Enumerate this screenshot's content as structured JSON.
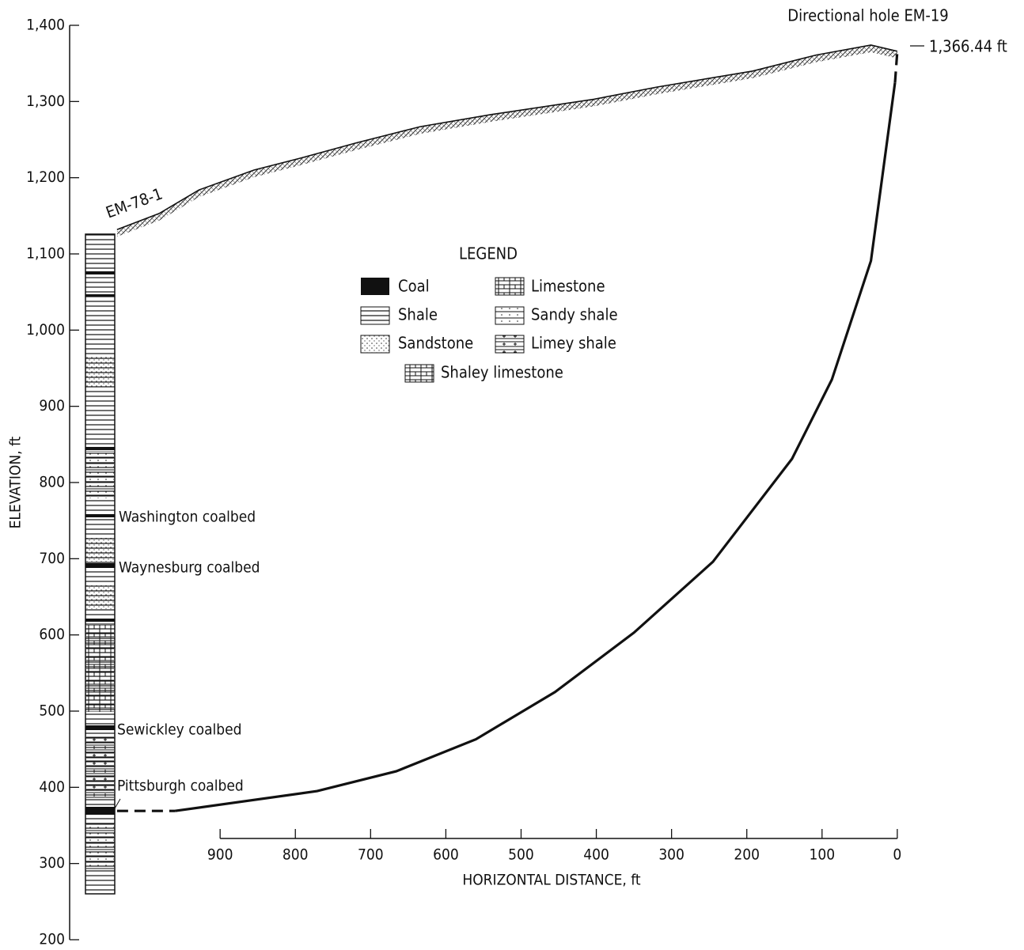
{
  "chart_data": {
    "type": "line",
    "ylabel": "ELEVATION, ft",
    "xlabel": "HORIZONTAL DISTANCE, ft",
    "xlim": [
      1100,
      -160
    ],
    "ylim": [
      200,
      1400
    ],
    "xticks": [
      900,
      800,
      700,
      600,
      500,
      400,
      300,
      200,
      100,
      0
    ],
    "yticks": [
      200,
      300,
      400,
      500,
      600,
      700,
      800,
      900,
      {
        "value": 1000,
        "label": "1,000"
      },
      {
        "value": 1100,
        "label": "1,100"
      },
      {
        "value": 1200,
        "label": "1,200"
      },
      {
        "value": 1300,
        "label": "1,300"
      },
      {
        "value": 1400,
        "label": "1,400"
      }
    ],
    "series": [
      {
        "color": "#111",
        "style": "surface",
        "x": [
          1037,
          981,
          928,
          855,
          792,
          718,
          634,
          539,
          403,
          319,
          192,
          108,
          35,
          0
        ],
        "values": [
          1132,
          1153,
          1184,
          1210,
          1226,
          1246,
          1267,
          1283,
          1303,
          1319,
          1340,
          1361,
          1374,
          1366
        ]
      },
      {
        "color": "#111",
        "style": "solid",
        "x": [
          960,
          771,
          666,
          560,
          455,
          350,
          245,
          140,
          87,
          35,
          3
        ],
        "values": [
          369,
          395,
          421,
          463,
          525,
          603,
          696,
          831,
          935,
          1091,
          1325
        ]
      },
      {
        "color": "#111",
        "style": "dashed",
        "x": [
          1037,
          960
        ],
        "values": [
          369,
          369
        ]
      },
      {
        "color": "#111",
        "style": "dashed",
        "x": [
          3,
          0
        ],
        "values": [
          1325,
          1366
        ]
      }
    ],
    "annotations": [
      "Directional hole EM-19",
      "1,366.44 ft",
      "EM-78-1",
      "Washington coalbed",
      "Waynesburg coalbed",
      "Sewickley coalbed",
      "Pittsburgh coalbed"
    ],
    "legend_title": "LEGEND",
    "legend_items": [
      "Coal",
      "Shale",
      "Sandstone",
      "Limestone",
      "Sandy shale",
      "Limey shale",
      "Shaley limestone"
    ]
  }
}
